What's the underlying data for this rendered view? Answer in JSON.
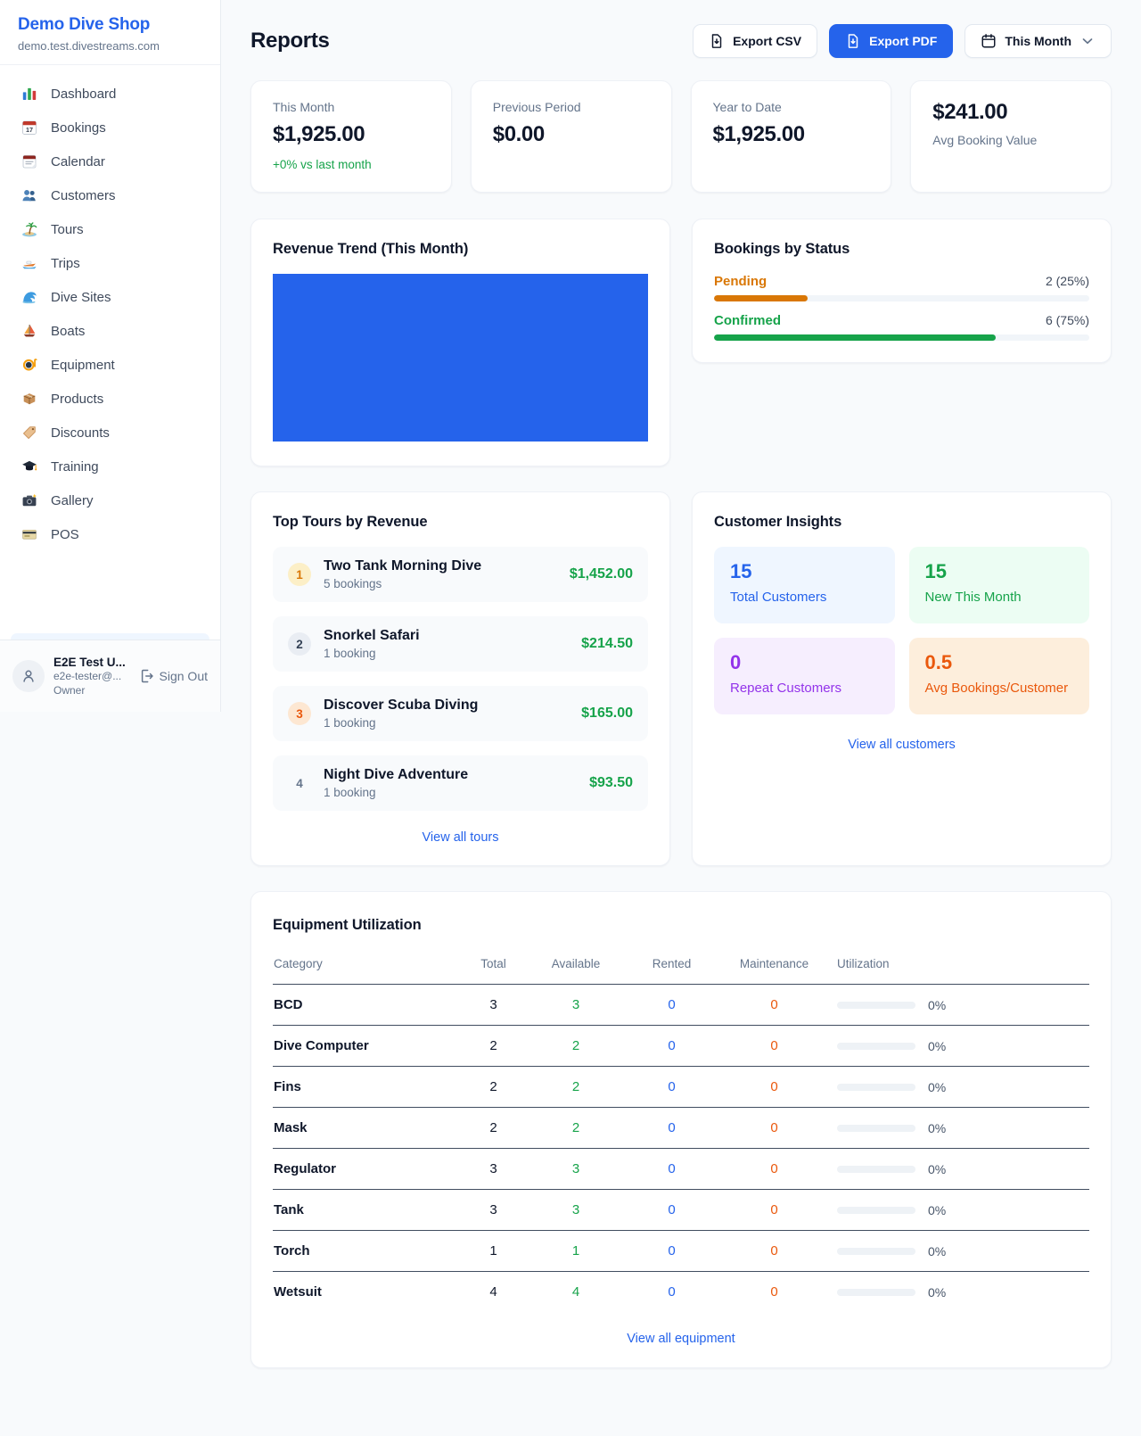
{
  "colors": {
    "primary_blue": "#2563eb",
    "green": "#16a34a",
    "amber": "#d97706",
    "orange": "#ea580c",
    "purple": "#9333ea",
    "page_bg": "#f8fafc"
  },
  "sidebar": {
    "brand": {
      "name": "Demo Dive Shop",
      "domain": "demo.test.divestreams.com"
    },
    "items": [
      {
        "label": "Dashboard",
        "icon": "bar-chart-icon"
      },
      {
        "label": "Bookings",
        "icon": "calendar-17-icon"
      },
      {
        "label": "Calendar",
        "icon": "tear-off-calendar-icon"
      },
      {
        "label": "Customers",
        "icon": "users-icon"
      },
      {
        "label": "Tours",
        "icon": "island-icon"
      },
      {
        "label": "Trips",
        "icon": "speedboat-icon"
      },
      {
        "label": "Dive Sites",
        "icon": "wave-icon"
      },
      {
        "label": "Boats",
        "icon": "sailboat-icon"
      },
      {
        "label": "Equipment",
        "icon": "dive-mask-icon"
      },
      {
        "label": "Products",
        "icon": "package-icon"
      },
      {
        "label": "Discounts",
        "icon": "tag-icon"
      },
      {
        "label": "Training",
        "icon": "graduation-cap-icon"
      },
      {
        "label": "Gallery",
        "icon": "camera-icon"
      },
      {
        "label": "POS",
        "icon": "credit-card-icon"
      }
    ],
    "user": {
      "name": "E2E Test U...",
      "email": "e2e-tester@...",
      "role": "Owner",
      "sign_out_label": "Sign Out"
    }
  },
  "header": {
    "title": "Reports",
    "export_csv_label": "Export CSV",
    "export_pdf_label": "Export PDF",
    "period_label": "This Month"
  },
  "stats": [
    {
      "label": "This Month",
      "value": "$1,925.00",
      "delta": "+0% vs last month",
      "delta_color": "#16a34a"
    },
    {
      "label": "Previous Period",
      "value": "$0.00"
    },
    {
      "label": "Year to Date",
      "value": "$1,925.00"
    },
    {
      "label": "Avg Booking Value",
      "value": "$241.00",
      "value_first": true
    }
  ],
  "revenue_trend": {
    "title": "Revenue Trend (This Month)",
    "bar_color": "#2563eb"
  },
  "chart_data": {
    "type": "bar",
    "title": "Revenue Trend (This Month)",
    "categories": [
      "This Month"
    ],
    "values": [
      1925
    ],
    "xlabel": "",
    "ylabel": "",
    "ylim": [
      0,
      1925
    ],
    "note": "rendered as a single solid blue block filling the plot area; no axes, ticks or gridlines visible"
  },
  "bookings_by_status": {
    "title": "Bookings by Status",
    "rows": [
      {
        "label": "Pending",
        "count": 2,
        "pct": 25,
        "count_label": "2 (25%)",
        "color": "#d97706"
      },
      {
        "label": "Confirmed",
        "count": 6,
        "pct": 75,
        "count_label": "6 (75%)",
        "color": "#16a34a"
      }
    ]
  },
  "top_tours": {
    "title": "Top Tours by Revenue",
    "view_all_label": "View all tours",
    "items": [
      {
        "rank": "1",
        "name": "Two Tank Morning Dive",
        "bookings": "5 bookings",
        "revenue": "$1,452.00"
      },
      {
        "rank": "2",
        "name": "Snorkel Safari",
        "bookings": "1 booking",
        "revenue": "$214.50"
      },
      {
        "rank": "3",
        "name": "Discover Scuba Diving",
        "bookings": "1 booking",
        "revenue": "$165.00"
      },
      {
        "rank": "4",
        "name": "Night Dive Adventure",
        "bookings": "1 booking",
        "revenue": "$93.50"
      }
    ]
  },
  "customer_insights": {
    "title": "Customer Insights",
    "view_all_label": "View all customers",
    "tiles": [
      {
        "value": "15",
        "label": "Total Customers",
        "color": "#2563eb",
        "bg": "#eff6ff"
      },
      {
        "value": "15",
        "label": "New This Month",
        "color": "#16a34a",
        "bg": "#ecfdf3"
      },
      {
        "value": "0",
        "label": "Repeat Customers",
        "color": "#9333ea",
        "bg": "#f6eefe"
      },
      {
        "value": "0.5",
        "label": "Avg Bookings/Customer",
        "color": "#ea580c",
        "bg": "#fdeedc"
      }
    ]
  },
  "equipment": {
    "title": "Equipment Utilization",
    "view_all_label": "View all equipment",
    "columns": [
      "Category",
      "Total",
      "Available",
      "Rented",
      "Maintenance",
      "Utilization"
    ],
    "value_colors": {
      "available": "#16a34a",
      "rented": "#2563eb",
      "maintenance": "#ea580c"
    },
    "rows": [
      {
        "category": "BCD",
        "total": "3",
        "available": "3",
        "rented": "0",
        "maintenance": "0",
        "utilization": "0%"
      },
      {
        "category": "Dive Computer",
        "total": "2",
        "available": "2",
        "rented": "0",
        "maintenance": "0",
        "utilization": "0%"
      },
      {
        "category": "Fins",
        "total": "2",
        "available": "2",
        "rented": "0",
        "maintenance": "0",
        "utilization": "0%"
      },
      {
        "category": "Mask",
        "total": "2",
        "available": "2",
        "rented": "0",
        "maintenance": "0",
        "utilization": "0%"
      },
      {
        "category": "Regulator",
        "total": "3",
        "available": "3",
        "rented": "0",
        "maintenance": "0",
        "utilization": "0%"
      },
      {
        "category": "Tank",
        "total": "3",
        "available": "3",
        "rented": "0",
        "maintenance": "0",
        "utilization": "0%"
      },
      {
        "category": "Torch",
        "total": "1",
        "available": "1",
        "rented": "0",
        "maintenance": "0",
        "utilization": "0%"
      },
      {
        "category": "Wetsuit",
        "total": "4",
        "available": "4",
        "rented": "0",
        "maintenance": "0",
        "utilization": "0%"
      }
    ]
  }
}
